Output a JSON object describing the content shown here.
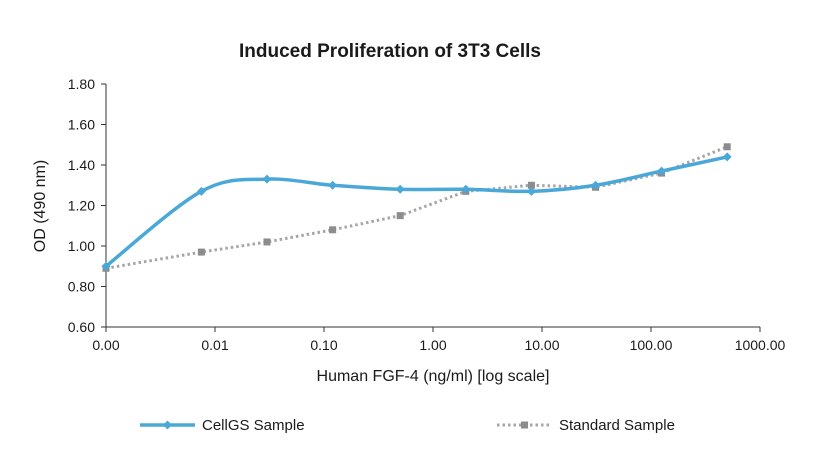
{
  "chart_data": {
    "type": "line",
    "title": "Induced Proliferation of 3T3 Cells",
    "xlabel": "Human FGF-4 (ng/ml) [log scale]",
    "ylabel": "OD (490 nm)",
    "x_scale": "log",
    "x_tick_labels": [
      "0.00",
      "0.01",
      "0.10",
      "1.00",
      "10.00",
      "100.00",
      "1000.00"
    ],
    "y_tick_labels": [
      "0.60",
      "0.80",
      "1.00",
      "1.20",
      "1.40",
      "1.60",
      "1.80"
    ],
    "ylim": [
      0.6,
      1.8
    ],
    "grid": false,
    "legend_position": "bottom",
    "series": [
      {
        "name": "CellGS Sample",
        "color": "#4aa8d8",
        "style": "solid",
        "marker": "diamond",
        "smooth": true,
        "x": [
          0.001,
          0.0075,
          0.03,
          0.12,
          0.5,
          2,
          8,
          31,
          125,
          500
        ],
        "y": [
          0.9,
          1.27,
          1.33,
          1.3,
          1.28,
          1.28,
          1.27,
          1.3,
          1.37,
          1.44
        ]
      },
      {
        "name": "Standard Sample",
        "color": "#a6a6a6",
        "style": "dotted",
        "marker": "square",
        "smooth": false,
        "x": [
          0.001,
          0.0075,
          0.03,
          0.12,
          0.5,
          2,
          8,
          31,
          125,
          500
        ],
        "y": [
          0.89,
          0.97,
          1.02,
          1.08,
          1.15,
          1.27,
          1.3,
          1.29,
          1.36,
          1.49
        ]
      }
    ]
  }
}
